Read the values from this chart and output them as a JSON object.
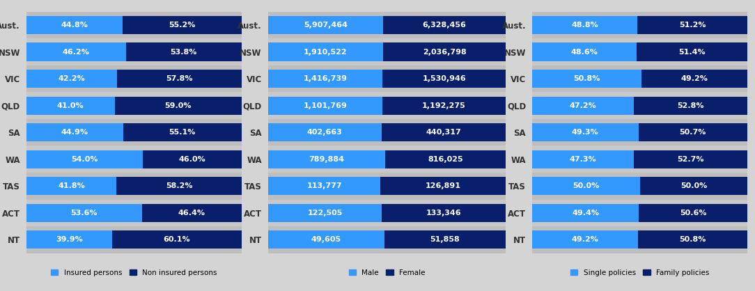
{
  "states": [
    "Aust.",
    "NSW",
    "VIC",
    "QLD",
    "SA",
    "WA",
    "TAS",
    "ACT",
    "NT"
  ],
  "chart1": {
    "insured": [
      44.8,
      46.2,
      42.2,
      41.0,
      44.9,
      54.0,
      41.8,
      53.6,
      39.9
    ],
    "non_insured": [
      55.2,
      53.8,
      57.8,
      59.0,
      55.1,
      46.0,
      58.2,
      46.4,
      60.1
    ],
    "color1": "#3399FF",
    "color2": "#0A1F6B",
    "legend1": "Insured persons",
    "legend2": "Non insured persons"
  },
  "chart2": {
    "male": [
      5907464,
      1910522,
      1416739,
      1101769,
      402663,
      789884,
      113777,
      122505,
      49605
    ],
    "female": [
      6328456,
      2036798,
      1530946,
      1192275,
      440317,
      816025,
      126891,
      133346,
      51858
    ],
    "male_pct": [
      48.28,
      48.4,
      48.05,
      48.02,
      47.76,
      49.17,
      47.26,
      47.87,
      48.89
    ],
    "female_pct": [
      51.72,
      51.6,
      51.95,
      51.98,
      52.24,
      50.83,
      52.74,
      52.13,
      51.11
    ],
    "male_labels": [
      "5,907,464",
      "1,910,522",
      "1,416,739",
      "1,101,769",
      "402,663",
      "789,884",
      "113,777",
      "122,505",
      "49,605"
    ],
    "female_labels": [
      "6,328,456",
      "2,036,798",
      "1,530,946",
      "1,192,275",
      "440,317",
      "816,025",
      "126,891",
      "133,346",
      "51,858"
    ],
    "color1": "#3399FF",
    "color2": "#0A1F6B",
    "legend1": "Male",
    "legend2": "Female"
  },
  "chart3": {
    "single": [
      48.8,
      48.6,
      50.8,
      47.2,
      49.3,
      47.3,
      50.0,
      49.4,
      49.2
    ],
    "family": [
      51.2,
      51.4,
      49.2,
      52.8,
      50.7,
      52.7,
      50.0,
      50.6,
      50.8
    ],
    "color1": "#3399FF",
    "color2": "#0A1F6B",
    "legend1": "Single policies",
    "legend2": "Family policies"
  },
  "bg_color": "#D4D4D4",
  "text_color": "#FFFFFF",
  "label_color": "#333333",
  "bar_height": 0.68,
  "font_size": 8.0,
  "label_font_size": 8.5
}
